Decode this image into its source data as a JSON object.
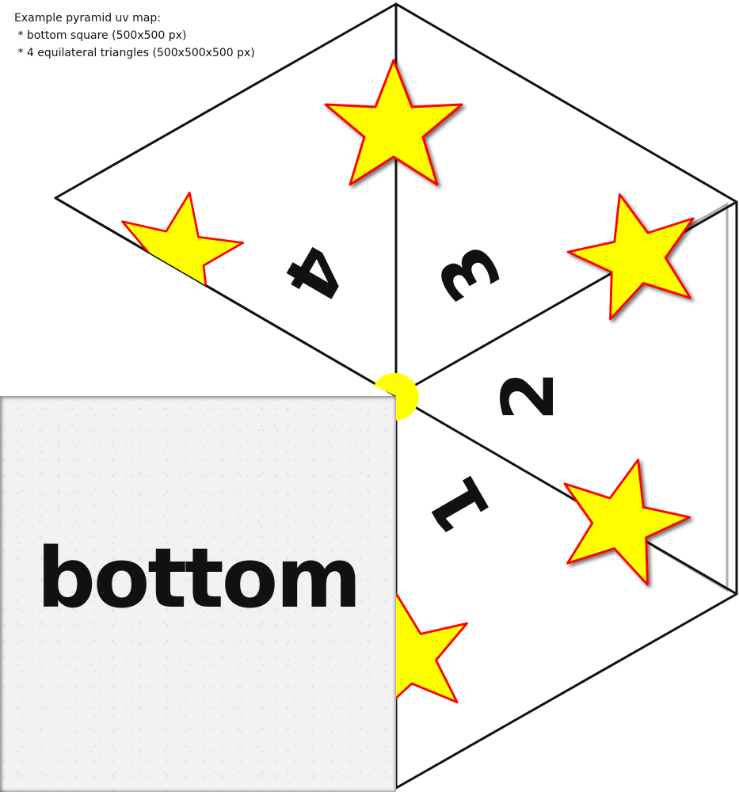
{
  "caption": {
    "line1": "Example pyramid uv map:",
    "line2": " * bottom square (500x500 px)",
    "line3": " * 4 equilateral triangles (500x500x500 px)"
  },
  "faces": [
    {
      "id": "1",
      "label": "1"
    },
    {
      "id": "2",
      "label": "2"
    },
    {
      "id": "3",
      "label": "3"
    },
    {
      "id": "4",
      "label": "4"
    }
  ],
  "bottom": {
    "label": "bottom"
  },
  "colors": {
    "star_fill": "#ffff00",
    "star_stroke": "#ff0000",
    "line": "#111111",
    "background": "#ffffff"
  }
}
